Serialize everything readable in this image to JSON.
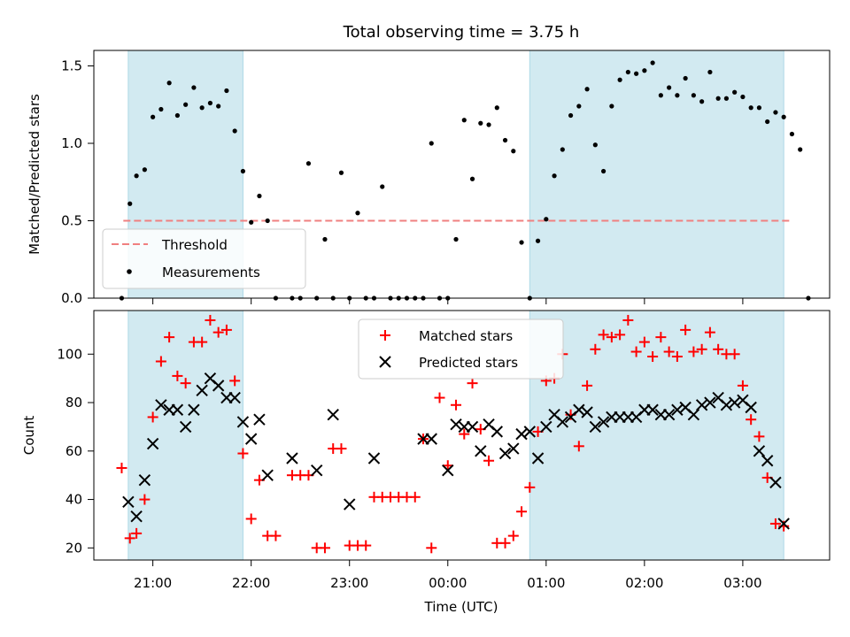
{
  "chart_data": [
    {
      "type": "scatter",
      "title": "Total observing time = 3.75 h",
      "xlabel": "",
      "ylabel": "Matched/Predicted stars",
      "x_axis": "time (UTC)",
      "xlim": [
        "20:24",
        "03:53"
      ],
      "ylim": [
        0,
        1.6
      ],
      "yticks": [
        "0.0",
        "0.5",
        "1.0",
        "1.5"
      ],
      "grid": false,
      "legend_position": "lower-left",
      "colors": {
        "threshold": "#f08080",
        "measurements": "#000000",
        "shade": "#add8e6"
      },
      "shaded_intervals": [
        [
          "20:45",
          "21:55"
        ],
        [
          "00:50",
          "03:25"
        ]
      ],
      "threshold": {
        "label": "Threshold",
        "y": 0.5,
        "x_range": [
          "20:42",
          "03:29"
        ]
      },
      "series": [
        {
          "name": "Measurements",
          "marker": "dot",
          "points": [
            [
              "20:41",
              0.0
            ],
            [
              "20:46",
              0.61
            ],
            [
              "20:50",
              0.79
            ],
            [
              "20:55",
              0.83
            ],
            [
              "21:00",
              1.17
            ],
            [
              "21:05",
              1.22
            ],
            [
              "21:10",
              1.39
            ],
            [
              "21:15",
              1.18
            ],
            [
              "21:20",
              1.25
            ],
            [
              "21:25",
              1.36
            ],
            [
              "21:30",
              1.23
            ],
            [
              "21:35",
              1.26
            ],
            [
              "21:40",
              1.24
            ],
            [
              "21:45",
              1.34
            ],
            [
              "21:50",
              1.08
            ],
            [
              "21:55",
              0.82
            ],
            [
              "22:00",
              0.49
            ],
            [
              "22:05",
              0.66
            ],
            [
              "22:10",
              0.5
            ],
            [
              "22:15",
              0.0
            ],
            [
              "22:25",
              0.0
            ],
            [
              "22:30",
              0.0
            ],
            [
              "22:35",
              0.87
            ],
            [
              "22:40",
              0.0
            ],
            [
              "22:45",
              0.38
            ],
            [
              "22:50",
              0.0
            ],
            [
              "22:55",
              0.81
            ],
            [
              "23:00",
              0.0
            ],
            [
              "23:05",
              0.55
            ],
            [
              "23:10",
              0.0
            ],
            [
              "23:15",
              0.0
            ],
            [
              "23:20",
              0.72
            ],
            [
              "23:25",
              0.0
            ],
            [
              "23:30",
              0.0
            ],
            [
              "23:35",
              0.0
            ],
            [
              "23:40",
              0.0
            ],
            [
              "23:45",
              0.0
            ],
            [
              "23:50",
              1.0
            ],
            [
              "23:55",
              0.0
            ],
            [
              "00:00",
              0.0
            ],
            [
              "00:05",
              0.38
            ],
            [
              "00:10",
              1.15
            ],
            [
              "00:15",
              0.77
            ],
            [
              "00:20",
              1.13
            ],
            [
              "00:25",
              1.12
            ],
            [
              "00:30",
              1.23
            ],
            [
              "00:35",
              1.02
            ],
            [
              "00:40",
              0.95
            ],
            [
              "00:45",
              0.36
            ],
            [
              "00:50",
              0.0
            ],
            [
              "00:55",
              0.37
            ],
            [
              "01:00",
              0.51
            ],
            [
              "01:05",
              0.79
            ],
            [
              "01:10",
              0.96
            ],
            [
              "01:15",
              1.18
            ],
            [
              "01:20",
              1.24
            ],
            [
              "01:25",
              1.35
            ],
            [
              "01:30",
              0.99
            ],
            [
              "01:35",
              0.82
            ],
            [
              "01:40",
              1.24
            ],
            [
              "01:45",
              1.41
            ],
            [
              "01:50",
              1.46
            ],
            [
              "01:55",
              1.45
            ],
            [
              "02:00",
              1.47
            ],
            [
              "02:05",
              1.52
            ],
            [
              "02:10",
              1.31
            ],
            [
              "02:15",
              1.36
            ],
            [
              "02:20",
              1.31
            ],
            [
              "02:25",
              1.42
            ],
            [
              "02:30",
              1.31
            ],
            [
              "02:35",
              1.27
            ],
            [
              "02:40",
              1.46
            ],
            [
              "02:45",
              1.29
            ],
            [
              "02:50",
              1.29
            ],
            [
              "02:55",
              1.33
            ],
            [
              "03:00",
              1.3
            ],
            [
              "03:05",
              1.23
            ],
            [
              "03:10",
              1.23
            ],
            [
              "03:15",
              1.14
            ],
            [
              "03:20",
              1.2
            ],
            [
              "03:25",
              1.17
            ],
            [
              "03:30",
              1.06
            ],
            [
              "03:35",
              0.96
            ],
            [
              "03:40",
              0.0
            ]
          ]
        }
      ]
    },
    {
      "type": "scatter",
      "title": "",
      "xlabel": "Time (UTC)",
      "ylabel": "Count",
      "xlim": [
        "20:24",
        "03:53"
      ],
      "ylim": [
        15,
        118
      ],
      "xticks": [
        "21:00",
        "22:00",
        "23:00",
        "00:00",
        "01:00",
        "02:00",
        "03:00"
      ],
      "yticks": [
        "20",
        "40",
        "60",
        "80",
        "100"
      ],
      "grid": false,
      "legend_position": "top-center",
      "colors": {
        "matched": "#ff0000",
        "predicted": "#000000",
        "shade": "#add8e6"
      },
      "shaded_intervals": [
        [
          "20:45",
          "21:55"
        ],
        [
          "00:50",
          "03:25"
        ]
      ],
      "series": [
        {
          "name": "Matched stars",
          "marker": "plus",
          "points": [
            [
              "20:41",
              53
            ],
            [
              "20:46",
              24
            ],
            [
              "20:50",
              26
            ],
            [
              "20:55",
              40
            ],
            [
              "21:00",
              74
            ],
            [
              "21:05",
              97
            ],
            [
              "21:10",
              107
            ],
            [
              "21:15",
              91
            ],
            [
              "21:20",
              88
            ],
            [
              "21:25",
              105
            ],
            [
              "21:30",
              105
            ],
            [
              "21:35",
              114
            ],
            [
              "21:40",
              109
            ],
            [
              "21:45",
              110
            ],
            [
              "21:50",
              89
            ],
            [
              "21:55",
              59
            ],
            [
              "22:00",
              32
            ],
            [
              "22:05",
              48
            ],
            [
              "22:10",
              25
            ],
            [
              "22:15",
              25
            ],
            [
              "22:25",
              50
            ],
            [
              "22:30",
              50
            ],
            [
              "22:35",
              50
            ],
            [
              "22:40",
              20
            ],
            [
              "22:45",
              20
            ],
            [
              "22:50",
              61
            ],
            [
              "22:55",
              61
            ],
            [
              "23:00",
              21
            ],
            [
              "23:05",
              21
            ],
            [
              "23:10",
              21
            ],
            [
              "23:15",
              41
            ],
            [
              "23:20",
              41
            ],
            [
              "23:25",
              41
            ],
            [
              "23:30",
              41
            ],
            [
              "23:35",
              41
            ],
            [
              "23:40",
              41
            ],
            [
              "23:45",
              65
            ],
            [
              "23:50",
              20
            ],
            [
              "23:55",
              82
            ],
            [
              "00:00",
              54
            ],
            [
              "00:05",
              79
            ],
            [
              "00:10",
              67
            ],
            [
              "00:15",
              88
            ],
            [
              "00:20",
              69
            ],
            [
              "00:25",
              56
            ],
            [
              "00:30",
              22
            ],
            [
              "00:35",
              22
            ],
            [
              "00:40",
              25
            ],
            [
              "00:45",
              35
            ],
            [
              "00:50",
              45
            ],
            [
              "00:55",
              68
            ],
            [
              "01:00",
              89
            ],
            [
              "01:05",
              90
            ],
            [
              "01:10",
              100
            ],
            [
              "01:15",
              75
            ],
            [
              "01:20",
              62
            ],
            [
              "01:25",
              87
            ],
            [
              "01:30",
              102
            ],
            [
              "01:35",
              108
            ],
            [
              "01:40",
              107
            ],
            [
              "01:45",
              108
            ],
            [
              "01:50",
              114
            ],
            [
              "01:55",
              101
            ],
            [
              "02:00",
              105
            ],
            [
              "02:05",
              99
            ],
            [
              "02:10",
              107
            ],
            [
              "02:15",
              101
            ],
            [
              "02:20",
              99
            ],
            [
              "02:25",
              110
            ],
            [
              "02:30",
              101
            ],
            [
              "02:35",
              102
            ],
            [
              "02:40",
              109
            ],
            [
              "02:45",
              102
            ],
            [
              "02:50",
              100
            ],
            [
              "02:55",
              100
            ],
            [
              "03:00",
              87
            ],
            [
              "03:05",
              73
            ],
            [
              "03:10",
              66
            ],
            [
              "03:15",
              49
            ],
            [
              "03:20",
              30
            ],
            [
              "03:25",
              29
            ]
          ]
        },
        {
          "name": "Predicted stars",
          "marker": "x",
          "points": [
            [
              "20:45",
              39
            ],
            [
              "20:50",
              33
            ],
            [
              "20:55",
              48
            ],
            [
              "21:00",
              63
            ],
            [
              "21:05",
              79
            ],
            [
              "21:10",
              77
            ],
            [
              "21:15",
              77
            ],
            [
              "21:20",
              70
            ],
            [
              "21:25",
              77
            ],
            [
              "21:30",
              85
            ],
            [
              "21:35",
              90
            ],
            [
              "21:40",
              87
            ],
            [
              "21:45",
              82
            ],
            [
              "21:50",
              82
            ],
            [
              "21:55",
              72
            ],
            [
              "22:00",
              65
            ],
            [
              "22:05",
              73
            ],
            [
              "22:10",
              50
            ],
            [
              "22:25",
              57
            ],
            [
              "22:40",
              52
            ],
            [
              "22:50",
              75
            ],
            [
              "23:00",
              38
            ],
            [
              "23:15",
              57
            ],
            [
              "23:45",
              65
            ],
            [
              "23:50",
              65
            ],
            [
              "24:00",
              52
            ],
            [
              "24:05",
              71
            ],
            [
              "24:10",
              70
            ],
            [
              "24:15",
              70
            ],
            [
              "24:20",
              60
            ],
            [
              "24:25",
              71
            ],
            [
              "24:30",
              68
            ],
            [
              "24:35",
              59
            ],
            [
              "24:40",
              61
            ],
            [
              "24:45",
              67
            ],
            [
              "24:50",
              68
            ],
            [
              "24:55",
              57
            ],
            [
              "25:00",
              70
            ],
            [
              "25:05",
              75
            ],
            [
              "25:10",
              72
            ],
            [
              "25:15",
              74
            ],
            [
              "25:20",
              77
            ],
            [
              "25:25",
              76
            ],
            [
              "25:30",
              70
            ],
            [
              "25:35",
              72
            ],
            [
              "25:40",
              74
            ],
            [
              "25:45",
              74
            ],
            [
              "25:50",
              74
            ],
            [
              "25:55",
              74
            ],
            [
              "26:00",
              77
            ],
            [
              "26:05",
              77
            ],
            [
              "26:10",
              75
            ],
            [
              "26:15",
              75
            ],
            [
              "26:20",
              77
            ],
            [
              "26:25",
              78
            ],
            [
              "26:30",
              75
            ],
            [
              "26:35",
              79
            ],
            [
              "26:40",
              80
            ],
            [
              "26:45",
              82
            ],
            [
              "26:50",
              79
            ],
            [
              "26:55",
              80
            ],
            [
              "27:00",
              81
            ],
            [
              "27:05",
              78
            ],
            [
              "27:10",
              60
            ],
            [
              "27:15",
              56
            ],
            [
              "27:20",
              47
            ],
            [
              "27:25",
              30
            ]
          ]
        }
      ]
    }
  ]
}
